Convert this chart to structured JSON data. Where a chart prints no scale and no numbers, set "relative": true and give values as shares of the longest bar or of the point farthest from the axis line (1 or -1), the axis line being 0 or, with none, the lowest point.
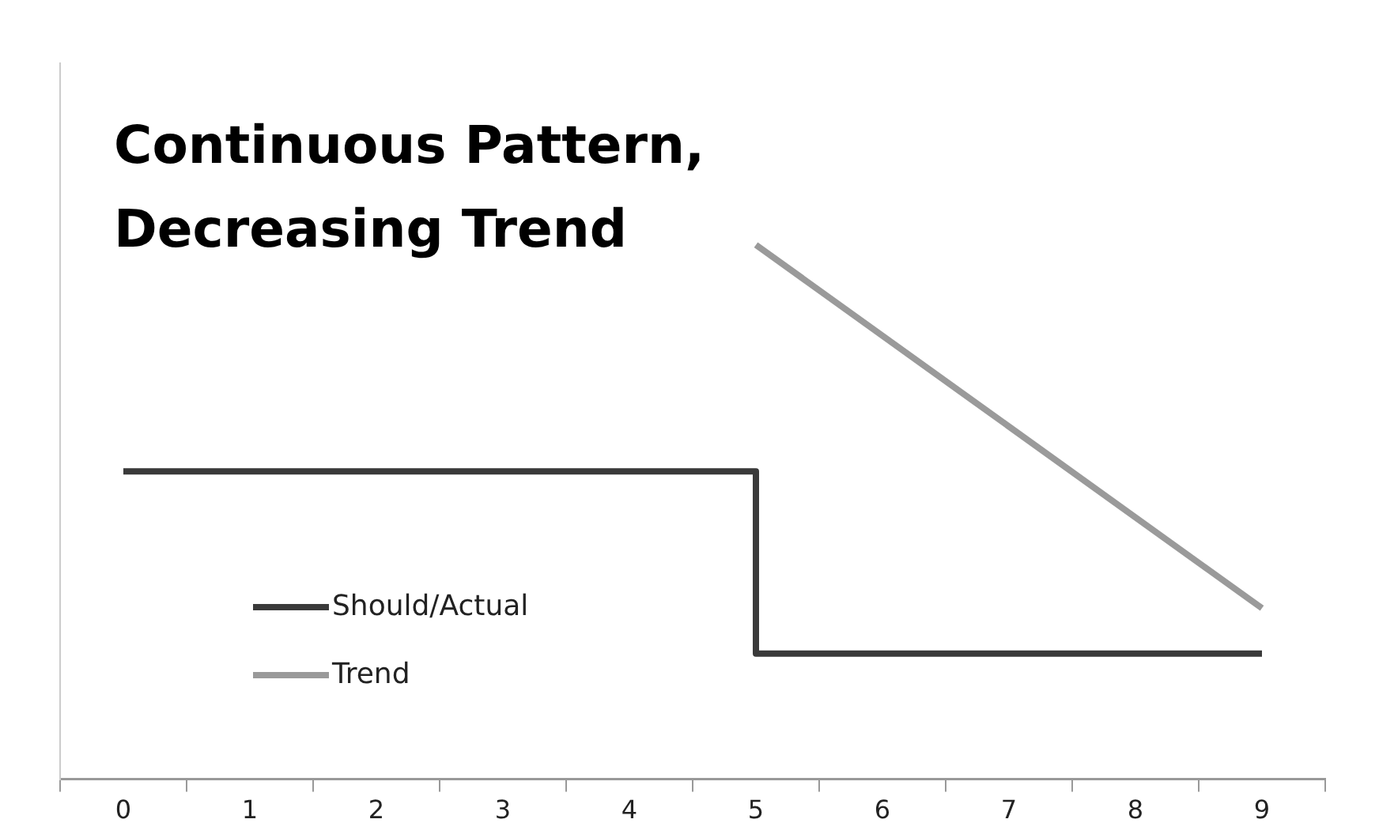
{
  "chart_data": {
    "type": "step",
    "title": "Continuous Pattern, Decreasing Trend",
    "categories": [
      "0",
      "1",
      "2",
      "3",
      "4",
      "5",
      "6",
      "7",
      "8",
      "9"
    ],
    "relative": true,
    "legend": "bottom left",
    "grid": false,
    "marker": "none",
    "series": [
      {
        "name": "Should/Actual",
        "color": "#3a3a3a",
        "values": [
          0.576,
          0.576,
          0.576,
          0.576,
          0.576,
          0.235,
          0.235,
          0.235,
          0.235,
          0.235
        ]
      },
      {
        "name": "Trend",
        "type": "line",
        "color": "#9a9a9a",
        "x": [
          "5",
          "9"
        ],
        "values": [
          1,
          0.32
        ]
      }
    ]
  }
}
